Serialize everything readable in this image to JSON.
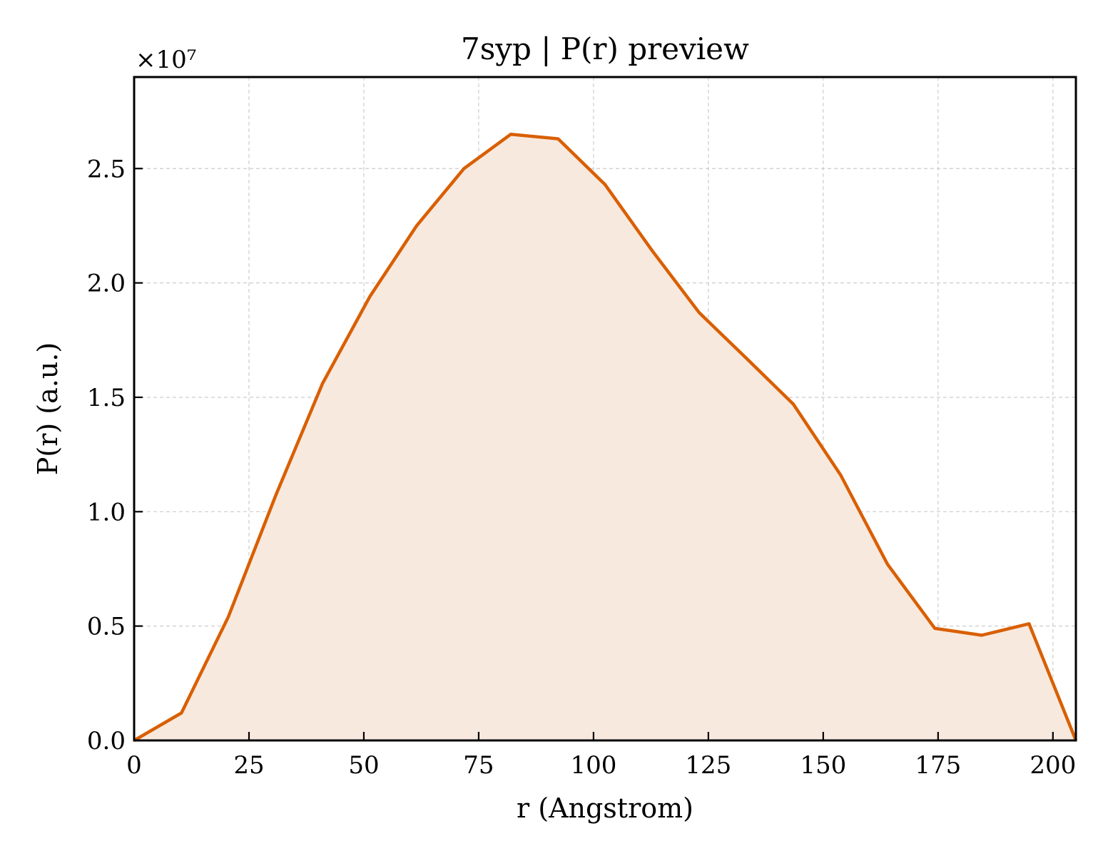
{
  "chart_data": {
    "type": "area",
    "title": "7syp | P(r) preview",
    "xlabel": "r (Angstrom)",
    "ylabel": "P(r) (a.u.)",
    "y_multiplier_label": "×10⁷",
    "xlim": [
      0,
      205
    ],
    "ylim": [
      0,
      2.9
    ],
    "xticks": [
      0,
      25,
      50,
      75,
      100,
      125,
      150,
      175,
      200
    ],
    "xtick_labels": [
      "0",
      "25",
      "50",
      "75",
      "100",
      "125",
      "150",
      "175",
      "200"
    ],
    "yticks": [
      0.0,
      0.5,
      1.0,
      1.5,
      2.0,
      2.5
    ],
    "ytick_labels": [
      "0.0",
      "0.5",
      "1.0",
      "1.5",
      "2.0",
      "2.5"
    ],
    "grid": true,
    "line_color": "#d95f02",
    "fill_color": "#f8e9df",
    "series": [
      {
        "x": [
          0,
          10.3,
          20.5,
          30.8,
          41.0,
          51.3,
          61.5,
          71.8,
          82.0,
          92.3,
          102.5,
          112.8,
          123.0,
          133.3,
          143.5,
          153.8,
          164.0,
          174.3,
          184.5,
          194.8,
          205.0
        ],
        "y": [
          0.0,
          0.12,
          0.54,
          1.07,
          1.56,
          1.94,
          2.25,
          2.5,
          2.65,
          2.63,
          2.43,
          2.14,
          1.87,
          1.67,
          1.47,
          1.16,
          0.77,
          0.49,
          0.46,
          0.51,
          0.0
        ]
      }
    ]
  }
}
